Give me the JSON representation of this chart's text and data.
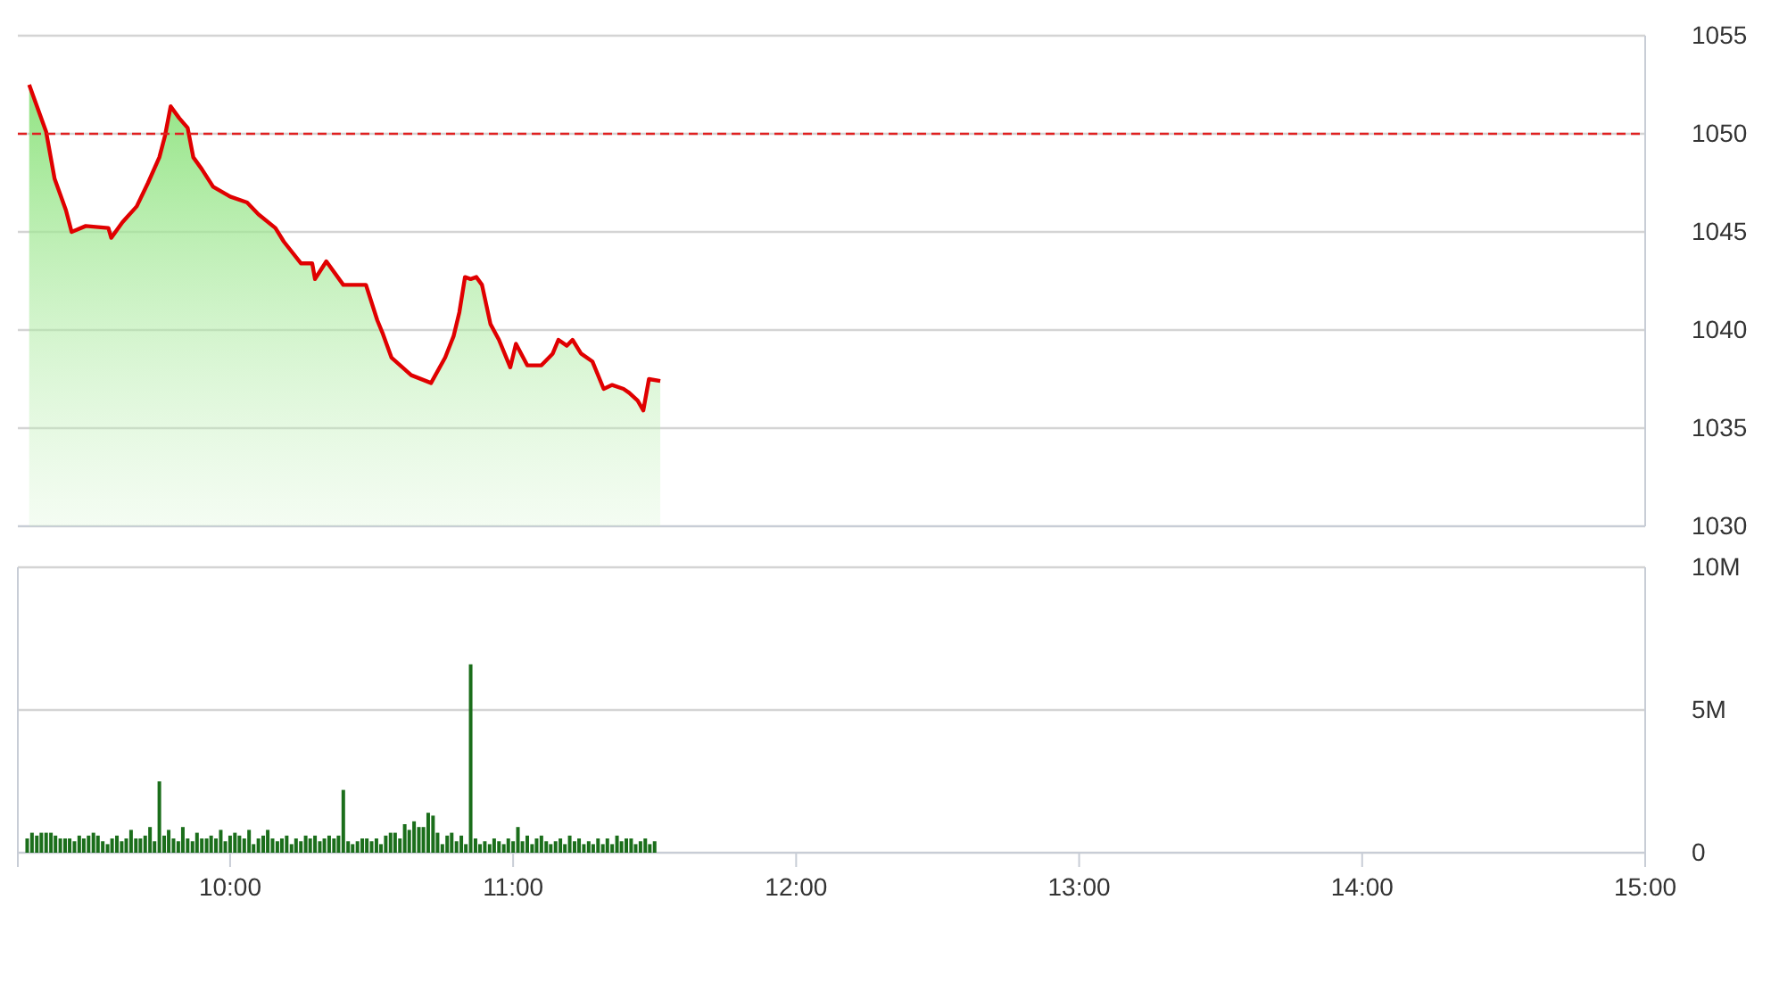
{
  "chart_data": [
    {
      "type": "area",
      "xlim": [
        9.25,
        15
      ],
      "ylim": [
        1030,
        1055
      ],
      "yticks": [
        1030,
        1035,
        1040,
        1045,
        1050,
        1055
      ],
      "grid": "y",
      "tick_labels": "y",
      "marker": "none",
      "line_style": "solid",
      "ref_lines": [
        {
          "axis": "y",
          "value": 1050,
          "color": "#e02020",
          "line_style": "dashed"
        }
      ],
      "series": [
        {
          "color": "#e00000",
          "x": [
            9.29,
            9.35,
            9.38,
            9.42,
            9.44,
            9.49,
            9.57,
            9.58,
            9.62,
            9.67,
            9.71,
            9.75,
            9.77,
            9.79,
            9.82,
            9.85,
            9.87,
            9.9,
            9.94,
            10.0,
            10.06,
            10.1,
            10.16,
            10.19,
            10.25,
            10.29,
            10.3,
            10.34,
            10.4,
            10.48,
            10.52,
            10.54,
            10.57,
            10.64,
            10.71,
            10.76,
            10.79,
            10.81,
            10.83,
            10.85,
            10.87,
            10.89,
            10.92,
            10.95,
            10.99,
            11.01,
            11.05,
            11.1,
            11.14,
            11.16,
            11.19,
            11.21,
            11.24,
            11.28,
            11.32,
            11.35,
            11.39,
            11.41,
            11.44,
            11.46,
            11.48,
            11.52
          ],
          "values": [
            1052.5,
            1050.1,
            1047.7,
            1046.1,
            1045,
            1045.3,
            1045.2,
            1044.7,
            1045.5,
            1046.3,
            1047.5,
            1048.8,
            1049.9,
            1051.4,
            1050.8,
            1050.3,
            1048.8,
            1048.2,
            1047.3,
            1046.8,
            1046.5,
            1045.9,
            1045.2,
            1044.5,
            1043.4,
            1043.4,
            1042.6,
            1043.5,
            1042.3,
            1042.3,
            1040.5,
            1039.8,
            1038.6,
            1037.7,
            1037.3,
            1038.6,
            1039.7,
            1040.9,
            1042.7,
            1042.6,
            1042.7,
            1042.3,
            1040.3,
            1039.5,
            1038.1,
            1039.3,
            1038.2,
            1038.2,
            1038.8,
            1039.5,
            1039.2,
            1039.5,
            1038.8,
            1038.4,
            1037,
            1037.2,
            1037,
            1036.8,
            1036.4,
            1035.9,
            1037.5,
            1037.4
          ]
        }
      ]
    },
    {
      "type": "bar",
      "xlim": [
        9.25,
        15
      ],
      "ylim": [
        0,
        10
      ],
      "yticks": [
        {
          "value": 0,
          "label": "0"
        },
        {
          "value": 5,
          "label": "5M"
        },
        {
          "value": 10,
          "label": "10M"
        }
      ],
      "grid": "y",
      "xticks": [
        {
          "value": 10,
          "label": "10:00"
        },
        {
          "value": 11,
          "label": "11:00"
        },
        {
          "value": 12,
          "label": "12:00"
        },
        {
          "value": 13,
          "label": "13:00"
        },
        {
          "value": 14,
          "label": "14:00"
        },
        {
          "value": 15,
          "label": "15:00"
        }
      ],
      "series": [
        {
          "color": "#1b6e1b",
          "x": [
            9.283,
            9.3,
            9.317,
            9.333,
            9.35,
            9.367,
            9.383,
            9.4,
            9.417,
            9.433,
            9.45,
            9.467,
            9.483,
            9.5,
            9.517,
            9.533,
            9.55,
            9.567,
            9.583,
            9.6,
            9.617,
            9.633,
            9.65,
            9.667,
            9.683,
            9.7,
            9.717,
            9.733,
            9.75,
            9.767,
            9.783,
            9.8,
            9.817,
            9.833,
            9.85,
            9.867,
            9.883,
            9.9,
            9.917,
            9.933,
            9.95,
            9.967,
            9.983,
            10.0,
            10.017,
            10.033,
            10.05,
            10.067,
            10.083,
            10.1,
            10.117,
            10.133,
            10.15,
            10.167,
            10.183,
            10.2,
            10.217,
            10.233,
            10.25,
            10.267,
            10.283,
            10.3,
            10.317,
            10.333,
            10.35,
            10.367,
            10.383,
            10.4,
            10.417,
            10.433,
            10.45,
            10.467,
            10.483,
            10.5,
            10.517,
            10.533,
            10.55,
            10.567,
            10.583,
            10.6,
            10.617,
            10.633,
            10.65,
            10.667,
            10.683,
            10.7,
            10.717,
            10.733,
            10.75,
            10.767,
            10.783,
            10.8,
            10.817,
            10.833,
            10.85,
            10.867,
            10.883,
            10.9,
            10.917,
            10.933,
            10.95,
            10.967,
            10.983,
            11.0,
            11.017,
            11.033,
            11.05,
            11.067,
            11.083,
            11.1,
            11.117,
            11.133,
            11.15,
            11.167,
            11.183,
            11.2,
            11.217,
            11.233,
            11.25,
            11.267,
            11.283,
            11.3,
            11.317,
            11.333,
            11.35,
            11.367,
            11.383,
            11.4,
            11.417,
            11.433,
            11.45,
            11.467,
            11.483,
            11.5
          ],
          "values": [
            0.5,
            0.7,
            0.6,
            0.7,
            0.7,
            0.7,
            0.6,
            0.5,
            0.5,
            0.5,
            0.4,
            0.6,
            0.5,
            0.6,
            0.7,
            0.6,
            0.4,
            0.3,
            0.5,
            0.6,
            0.4,
            0.5,
            0.8,
            0.5,
            0.5,
            0.6,
            0.9,
            0.4,
            2.5,
            0.6,
            0.8,
            0.5,
            0.4,
            0.9,
            0.5,
            0.4,
            0.7,
            0.5,
            0.5,
            0.6,
            0.5,
            0.8,
            0.4,
            0.6,
            0.7,
            0.6,
            0.5,
            0.8,
            0.3,
            0.5,
            0.6,
            0.8,
            0.5,
            0.4,
            0.5,
            0.6,
            0.3,
            0.5,
            0.4,
            0.6,
            0.5,
            0.6,
            0.4,
            0.5,
            0.6,
            0.5,
            0.6,
            2.2,
            0.4,
            0.3,
            0.4,
            0.5,
            0.5,
            0.4,
            0.5,
            0.3,
            0.6,
            0.7,
            0.7,
            0.5,
            1.0,
            0.8,
            1.1,
            0.9,
            0.9,
            1.4,
            1.3,
            0.7,
            0.3,
            0.6,
            0.7,
            0.4,
            0.6,
            0.3,
            6.6,
            0.5,
            0.3,
            0.4,
            0.3,
            0.5,
            0.4,
            0.3,
            0.5,
            0.4,
            0.9,
            0.4,
            0.6,
            0.3,
            0.5,
            0.6,
            0.4,
            0.3,
            0.4,
            0.5,
            0.3,
            0.6,
            0.4,
            0.5,
            0.3,
            0.4,
            0.3,
            0.5,
            0.3,
            0.5,
            0.3,
            0.6,
            0.4,
            0.5,
            0.5,
            0.3,
            0.4,
            0.5,
            0.3,
            0.4
          ]
        }
      ]
    }
  ]
}
